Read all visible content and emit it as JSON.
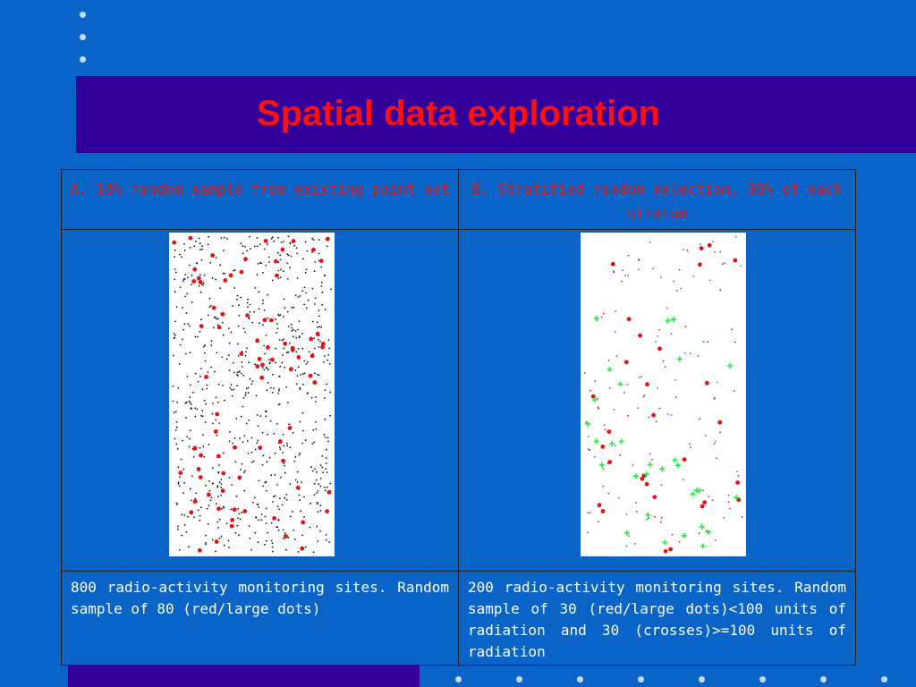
{
  "slide": {
    "title": "Spatial data exploration"
  },
  "table": {
    "header_a": "A. 10% random sample from existing point set",
    "header_b": "B. Stratified random selection, 30% of each stratum",
    "caption_a": "800 radio-activity monitoring sites. Random sample of 80 (red/large dots)",
    "caption_b": "200 radio-activity monitoring sites. Random sample of 30 (red/large dots)<100 units of radiation and 30 (crosses)>=100 units of radiation"
  },
  "colors": {
    "background": "#0a64c8",
    "title_bar": "#34009b",
    "title_text": "#ff1010",
    "header_text": "#e01818",
    "sample_dot": "#e81010",
    "cross": "#22ee44",
    "small_dot_a": "#111111",
    "small_dot_b": "#d02020"
  }
}
